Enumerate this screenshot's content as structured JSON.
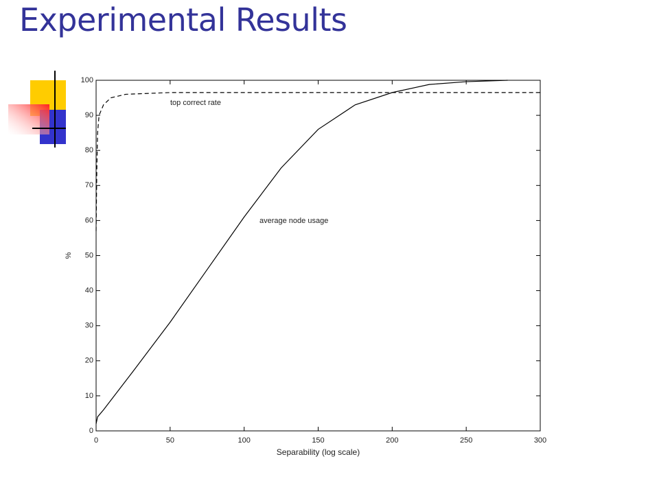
{
  "title": "Experimental Results",
  "chart_data": {
    "type": "line",
    "x_label": "Separability (log scale)",
    "y_label": "%",
    "xlim": [
      0,
      300
    ],
    "xticks": [
      0,
      50,
      100,
      150,
      200,
      250,
      300
    ],
    "ylim": [
      0,
      100
    ],
    "yticks": [
      0,
      10,
      20,
      30,
      40,
      50,
      60,
      70,
      80,
      90,
      100
    ],
    "series": [
      {
        "name": "top correct rate",
        "color": "#000000",
        "dash": true,
        "x": [
          0,
          0.5,
          1,
          2,
          5,
          10,
          20,
          50,
          100,
          300
        ],
        "values": [
          57,
          75,
          85,
          90,
          93,
          95,
          96,
          96.5,
          96.5,
          96.5
        ]
      },
      {
        "name": "average node usage",
        "color": "#000000",
        "dash": false,
        "x": [
          0,
          1,
          5,
          25,
          50,
          75,
          100,
          125,
          150,
          175,
          200,
          225,
          250,
          278
        ],
        "values": [
          2,
          4,
          6,
          17,
          31,
          46,
          61,
          75,
          86,
          93,
          96.5,
          98.8,
          99.6,
          100
        ]
      }
    ]
  }
}
